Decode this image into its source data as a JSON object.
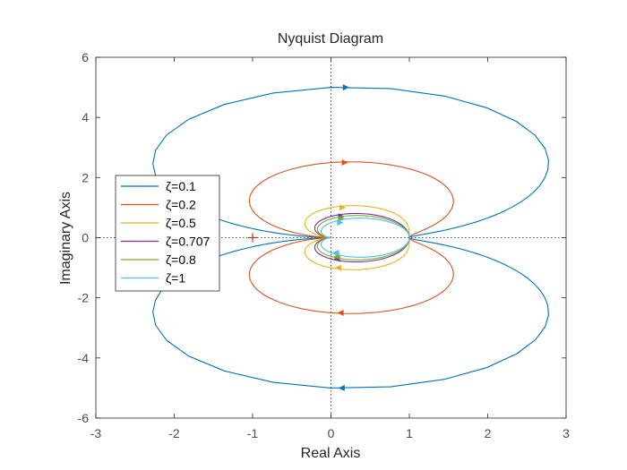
{
  "chart_data": {
    "type": "line",
    "title": "Nyquist Diagram",
    "xlabel": "Real Axis",
    "ylabel": "Imaginary Axis",
    "xlim": [
      -3,
      3
    ],
    "ylim": [
      -6,
      6
    ],
    "xticks": [
      "-3",
      "-2",
      "-1",
      "0",
      "1",
      "2",
      "3"
    ],
    "yticks": [
      "-6",
      "-4",
      "-2",
      "0",
      "2",
      "4",
      "6"
    ],
    "grid": false,
    "zero_lines": "dotted",
    "legend_position": "left",
    "critical_point": {
      "x": -1,
      "y": 0,
      "marker": "+",
      "color": "#c02f1d"
    },
    "series": [
      {
        "name": "ζ=0.1",
        "color": "#0072bd",
        "zeta": 0.1
      },
      {
        "name": "ζ=0.2",
        "color": "#d95319",
        "zeta": 0.2
      },
      {
        "name": "ζ=0.5",
        "color": "#edb120",
        "zeta": 0.5
      },
      {
        "name": "ζ=0.707",
        "color": "#7e2f8e",
        "zeta": 0.707
      },
      {
        "name": "ζ=0.8",
        "color": "#77ac30",
        "zeta": 0.8
      },
      {
        "name": "ζ=1",
        "color": "#4dbeee",
        "zeta": 1
      }
    ]
  }
}
